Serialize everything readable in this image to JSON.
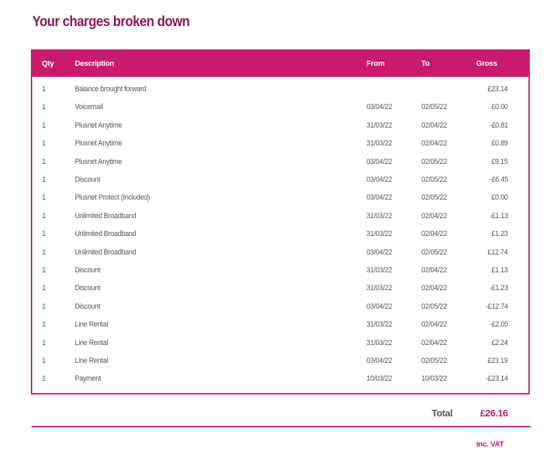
{
  "page_title": "Your charges broken down",
  "table": {
    "headers": {
      "qty": "Qty",
      "description": "Description",
      "from": "From",
      "to": "To",
      "gross": "Gross"
    },
    "rows": [
      {
        "qty": "1",
        "description": "Balance brought forward",
        "from": "",
        "to": "",
        "gross": "£23.14"
      },
      {
        "qty": "1",
        "description": "Voicemail",
        "from": "03/04/22",
        "to": "02/05/22",
        "gross": "£0.00"
      },
      {
        "qty": "1",
        "description": "Plusnet Anytime",
        "from": "31/03/22",
        "to": "02/04/22",
        "gross": "-£0.81"
      },
      {
        "qty": "1",
        "description": "Plusnet Anytime",
        "from": "31/03/22",
        "to": "02/04/22",
        "gross": "£0.89"
      },
      {
        "qty": "1",
        "description": "Plusnet Anytime",
        "from": "03/04/22",
        "to": "02/05/22",
        "gross": "£9.15"
      },
      {
        "qty": "1",
        "description": "Discount",
        "from": "03/04/22",
        "to": "02/05/22",
        "gross": "-£6.45"
      },
      {
        "qty": "1",
        "description": "Plusnet Protect (Included)",
        "from": "03/04/22",
        "to": "02/05/22",
        "gross": "£0.00"
      },
      {
        "qty": "1",
        "description": "Unlimited Broadband",
        "from": "31/03/22",
        "to": "02/04/22",
        "gross": "-£1.13"
      },
      {
        "qty": "1",
        "description": "Unlimited Broadband",
        "from": "31/03/22",
        "to": "02/04/22",
        "gross": "£1.23"
      },
      {
        "qty": "1",
        "description": "Unlimited Broadband",
        "from": "03/04/22",
        "to": "02/05/22",
        "gross": "£12.74"
      },
      {
        "qty": "1",
        "description": "Discount",
        "from": "31/03/22",
        "to": "02/04/22",
        "gross": "£1.13"
      },
      {
        "qty": "1",
        "description": "Discount",
        "from": "31/03/22",
        "to": "02/04/22",
        "gross": "-£1.23"
      },
      {
        "qty": "1",
        "description": "Discount",
        "from": "03/04/22",
        "to": "02/05/22",
        "gross": "-£12.74"
      },
      {
        "qty": "1",
        "description": "Line Rental",
        "from": "31/03/22",
        "to": "02/04/22",
        "gross": "-£2.05"
      },
      {
        "qty": "1",
        "description": "Line Rental",
        "from": "31/03/22",
        "to": "02/04/22",
        "gross": "£2.24"
      },
      {
        "qty": "1",
        "description": "Line Rental",
        "from": "03/04/22",
        "to": "02/05/22",
        "gross": "£23.19"
      },
      {
        "qty": "1",
        "description": "Payment",
        "from": "10/03/22",
        "to": "10/03/22",
        "gross": "-£23.14"
      }
    ]
  },
  "summary": {
    "total_label": "Total",
    "total_value": "£26.16",
    "vat_note": "Inc. VAT"
  },
  "colors": {
    "accent": "#c91b6b",
    "title": "#8a1a56",
    "text": "#555555"
  }
}
